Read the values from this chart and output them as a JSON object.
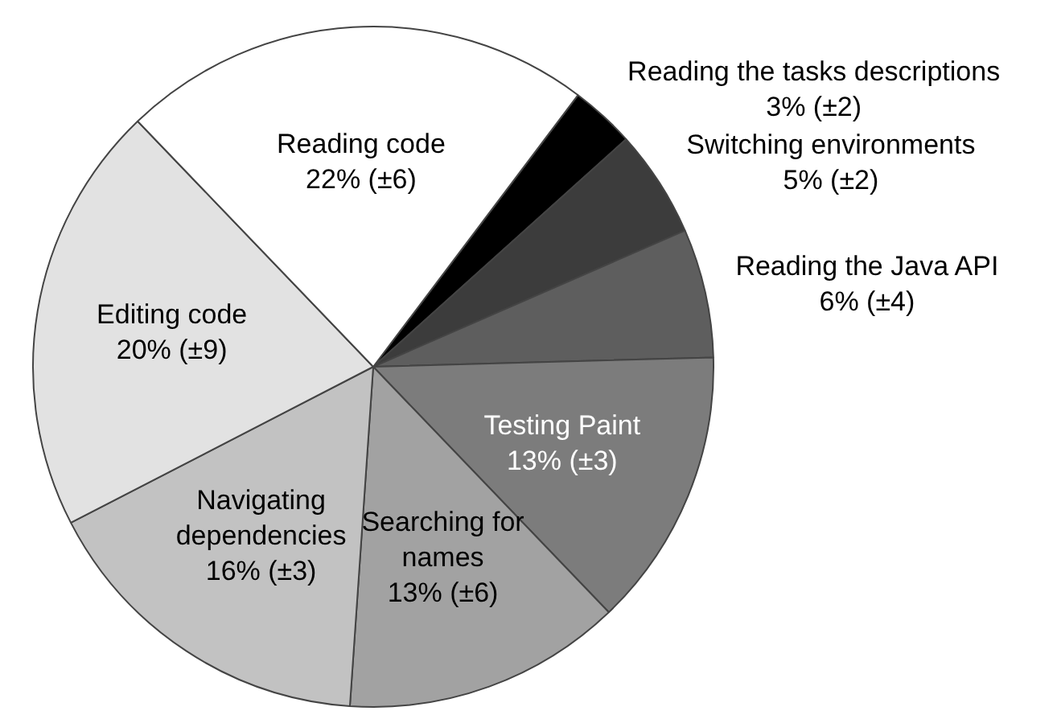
{
  "chart_data": {
    "type": "pie",
    "categories": [
      "Reading the tasks descriptions",
      "Switching environments",
      "Reading the Java API",
      "Testing Paint",
      "Searching for names",
      "Navigating dependencies",
      "Editing code",
      "Reading code"
    ],
    "values": [
      3,
      5,
      6,
      13,
      13,
      16,
      20,
      22
    ],
    "value_labels": [
      "3% (±2)",
      "5% (±2)",
      "6% (±4)",
      "13% (±3)",
      "13% (±6)",
      "16% (±3)",
      "20% (±9)",
      "22% (±6)"
    ],
    "colors": [
      "#000000",
      "#3c3c3c",
      "#5e5e5e",
      "#7c7c7c",
      "#a2a2a2",
      "#c2c2c2",
      "#e2e2e2",
      "#ffffff"
    ]
  }
}
